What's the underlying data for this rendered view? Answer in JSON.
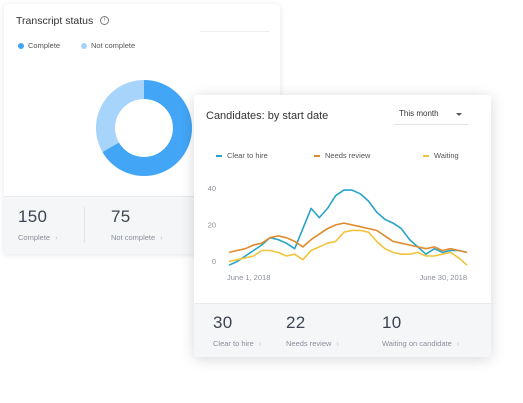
{
  "transcript": {
    "title": "Transcript status",
    "info_icon": "info-icon",
    "legend": [
      {
        "label": "Complete",
        "color": "#42a5f5"
      },
      {
        "label": "Not complete",
        "color": "#a6d4fa"
      }
    ],
    "donut": [
      {
        "label": "Complete",
        "value": 150,
        "color": "#42a5f5"
      },
      {
        "label": "Not complete",
        "value": 75,
        "color": "#a6d4fa"
      }
    ],
    "stats": [
      {
        "value": "150",
        "label": "Complete"
      },
      {
        "value": "75",
        "label": "Not complete"
      }
    ]
  },
  "candidates": {
    "title": "Candidates: by start date",
    "period_select": "This month",
    "stats": [
      {
        "value": "30",
        "label": "Clear to hire"
      },
      {
        "value": "22",
        "label": "Needs review"
      },
      {
        "value": "10",
        "label": "Waiting on candidate"
      }
    ]
  },
  "chart_data": {
    "type": "line",
    "x_labels": [
      "June 1, 2018",
      "June 30, 2018"
    ],
    "x": [
      1,
      2,
      3,
      4,
      5,
      6,
      7,
      8,
      9,
      10,
      11,
      12,
      13,
      14,
      15,
      16,
      17,
      18,
      19,
      20,
      21,
      22,
      23,
      24,
      25,
      26,
      27,
      28,
      29,
      30
    ],
    "ylim": [
      -3,
      44
    ],
    "yticks": [
      0,
      20,
      40
    ],
    "series": [
      {
        "name": "Clear to hire",
        "color": "#29a3c7",
        "values": [
          -2,
          0,
          3,
          6,
          9,
          13,
          12,
          10,
          7,
          18,
          29,
          24,
          29,
          36,
          39,
          39,
          37,
          33,
          27,
          23,
          21,
          18,
          12,
          8,
          4,
          7,
          5,
          6,
          6,
          5
        ]
      },
      {
        "name": "Needs review",
        "color": "#e08a2e",
        "values": [
          5,
          6,
          7,
          9,
          10,
          13,
          14,
          13,
          11,
          8,
          12,
          15,
          18,
          20,
          21,
          20,
          19,
          18,
          17,
          14,
          11,
          10,
          9,
          8,
          7,
          8,
          6,
          7,
          6,
          5
        ]
      },
      {
        "name": "Waiting",
        "color": "#f0c43a",
        "values": [
          0,
          1,
          2,
          3,
          6,
          6,
          5,
          3,
          4,
          1,
          6,
          8,
          10,
          11,
          16,
          17,
          17,
          16,
          11,
          7,
          5,
          4,
          4,
          5,
          3,
          3,
          4,
          5,
          2,
          -2
        ]
      }
    ]
  }
}
